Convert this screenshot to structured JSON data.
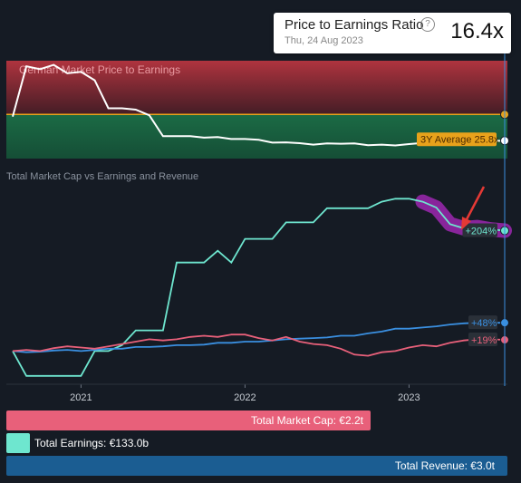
{
  "tooltip": {
    "title": "Price to Earnings Ratio",
    "help_icon": "question-circle-icon",
    "date": "Thu, 24 Aug 2023",
    "value": "16.4x"
  },
  "chart_data": [
    {
      "type": "line",
      "title": "German Market Price to Earnings",
      "x_range": [
        "2020-08",
        "2023-08"
      ],
      "y_range": [
        10,
        45
      ],
      "series": [
        {
          "values": [
            [
              "2020-08",
              25
            ],
            [
              "2020-09",
              43
            ],
            [
              "2020-10",
              42
            ],
            [
              "2020-11",
              43.5
            ],
            [
              "2020-12",
              40.5
            ],
            [
              "2021-01",
              41
            ],
            [
              "2021-02",
              38
            ],
            [
              "2021-03",
              28
            ],
            [
              "2021-04",
              28
            ],
            [
              "2021-05",
              27.5
            ],
            [
              "2021-06",
              25.5
            ],
            [
              "2021-07",
              18
            ],
            [
              "2021-08",
              18
            ],
            [
              "2021-09",
              18
            ],
            [
              "2021-10",
              17.5
            ],
            [
              "2021-11",
              17.7
            ],
            [
              "2021-12",
              17
            ],
            [
              "2022-01",
              17
            ],
            [
              "2022-02",
              16.7
            ],
            [
              "2022-03",
              15.7
            ],
            [
              "2022-04",
              15.8
            ],
            [
              "2022-05",
              15.5
            ],
            [
              "2022-06",
              15
            ],
            [
              "2022-07",
              15.4
            ],
            [
              "2022-08",
              15.3
            ],
            [
              "2022-09",
              15.4
            ],
            [
              "2022-10",
              14.8
            ],
            [
              "2022-11",
              15
            ],
            [
              "2022-12",
              14.7
            ],
            [
              "2023-01",
              15.2
            ],
            [
              "2023-02",
              15.6
            ],
            [
              "2023-03",
              15.3
            ],
            [
              "2023-04",
              15.7
            ],
            [
              "2023-05",
              16
            ],
            [
              "2023-06",
              16
            ],
            [
              "2023-07",
              16.3
            ],
            [
              "2023-08",
              16.4
            ]
          ]
        }
      ],
      "average": {
        "label": "3Y Average 25.8x",
        "value": 25.8
      },
      "colors": {
        "line": "#ffffff",
        "above": "#c7333e",
        "below": "#165a3c",
        "average": "#e8a21b"
      }
    },
    {
      "type": "line",
      "title": "Total Market Cap vs Earnings and Revenue",
      "x_ticks": [
        "2021",
        "2022",
        "2023"
      ],
      "x_range": [
        "2020-08",
        "2023-08"
      ],
      "y_range": [
        -50,
        280
      ],
      "series": [
        {
          "name": "Total Earnings",
          "color": "#6ee6cf",
          "end_label": "+204%",
          "values": [
            [
              "2020-08",
              0
            ],
            [
              "2020-09",
              -42
            ],
            [
              "2020-10",
              -42
            ],
            [
              "2020-11",
              -42
            ],
            [
              "2020-12",
              -42
            ],
            [
              "2021-01",
              -42
            ],
            [
              "2021-02",
              0
            ],
            [
              "2021-03",
              0
            ],
            [
              "2021-04",
              10
            ],
            [
              "2021-05",
              35
            ],
            [
              "2021-06",
              35
            ],
            [
              "2021-07",
              35
            ],
            [
              "2021-08",
              150
            ],
            [
              "2021-09",
              150
            ],
            [
              "2021-10",
              150
            ],
            [
              "2021-11",
              170
            ],
            [
              "2021-12",
              150
            ],
            [
              "2022-01",
              190
            ],
            [
              "2022-02",
              190
            ],
            [
              "2022-03",
              190
            ],
            [
              "2022-04",
              218
            ],
            [
              "2022-05",
              218
            ],
            [
              "2022-06",
              218
            ],
            [
              "2022-07",
              242
            ],
            [
              "2022-08",
              242
            ],
            [
              "2022-09",
              242
            ],
            [
              "2022-10",
              242
            ],
            [
              "2022-11",
              253
            ],
            [
              "2022-12",
              258
            ],
            [
              "2023-01",
              258
            ],
            [
              "2023-02",
              253
            ],
            [
              "2023-03",
              243
            ],
            [
              "2023-04",
              215
            ],
            [
              "2023-05",
              208
            ],
            [
              "2023-06",
              210
            ],
            [
              "2023-07",
              206
            ],
            [
              "2023-08",
              204
            ]
          ]
        },
        {
          "name": "Total Revenue",
          "color": "#3a8fe0",
          "end_label": "+48%",
          "values": [
            [
              "2020-08",
              0
            ],
            [
              "2020-09",
              -2
            ],
            [
              "2020-10",
              -1
            ],
            [
              "2020-11",
              1
            ],
            [
              "2020-12",
              2
            ],
            [
              "2021-01",
              0
            ],
            [
              "2021-02",
              2
            ],
            [
              "2021-03",
              4
            ],
            [
              "2021-04",
              4
            ],
            [
              "2021-05",
              7
            ],
            [
              "2021-06",
              7
            ],
            [
              "2021-07",
              8
            ],
            [
              "2021-08",
              10
            ],
            [
              "2021-09",
              10
            ],
            [
              "2021-10",
              11
            ],
            [
              "2021-11",
              14
            ],
            [
              "2021-12",
              14
            ],
            [
              "2022-01",
              16
            ],
            [
              "2022-02",
              16
            ],
            [
              "2022-03",
              18
            ],
            [
              "2022-04",
              20
            ],
            [
              "2022-05",
              21
            ],
            [
              "2022-06",
              22
            ],
            [
              "2022-07",
              23
            ],
            [
              "2022-08",
              26
            ],
            [
              "2022-09",
              26
            ],
            [
              "2022-10",
              30
            ],
            [
              "2022-11",
              33
            ],
            [
              "2022-12",
              38
            ],
            [
              "2023-01",
              38
            ],
            [
              "2023-02",
              40
            ],
            [
              "2023-03",
              42
            ],
            [
              "2023-04",
              45
            ],
            [
              "2023-05",
              47
            ],
            [
              "2023-06",
              48
            ],
            [
              "2023-07",
              48
            ],
            [
              "2023-08",
              48
            ]
          ]
        },
        {
          "name": "Total Market Cap",
          "color": "#e8607a",
          "end_label": "+19%",
          "values": [
            [
              "2020-08",
              0
            ],
            [
              "2020-09",
              2
            ],
            [
              "2020-10",
              0
            ],
            [
              "2020-11",
              5
            ],
            [
              "2020-12",
              8
            ],
            [
              "2021-01",
              6
            ],
            [
              "2021-02",
              4
            ],
            [
              "2021-03",
              8
            ],
            [
              "2021-04",
              12
            ],
            [
              "2021-05",
              16
            ],
            [
              "2021-06",
              20
            ],
            [
              "2021-07",
              18
            ],
            [
              "2021-08",
              20
            ],
            [
              "2021-09",
              24
            ],
            [
              "2021-10",
              26
            ],
            [
              "2021-11",
              24
            ],
            [
              "2021-12",
              28
            ],
            [
              "2022-01",
              28
            ],
            [
              "2022-02",
              22
            ],
            [
              "2022-03",
              18
            ],
            [
              "2022-04",
              24
            ],
            [
              "2022-05",
              16
            ],
            [
              "2022-06",
              12
            ],
            [
              "2022-07",
              10
            ],
            [
              "2022-08",
              4
            ],
            [
              "2022-09",
              -6
            ],
            [
              "2022-10",
              -8
            ],
            [
              "2022-11",
              -2
            ],
            [
              "2022-12",
              0
            ],
            [
              "2023-01",
              6
            ],
            [
              "2023-02",
              10
            ],
            [
              "2023-03",
              8
            ],
            [
              "2023-04",
              14
            ],
            [
              "2023-05",
              18
            ],
            [
              "2023-06",
              20
            ],
            [
              "2023-07",
              20
            ],
            [
              "2023-08",
              19
            ]
          ]
        }
      ],
      "highlight": {
        "color": "#9c27b0",
        "from": "2023-02",
        "to": "2023-08",
        "series": "Total Earnings"
      },
      "arrow_color": "#e53935"
    }
  ],
  "legend": {
    "market_cap": "Total Market Cap: €2.2t",
    "earnings": "Total Earnings: €133.0b",
    "revenue": "Total Revenue: €3.0t"
  }
}
